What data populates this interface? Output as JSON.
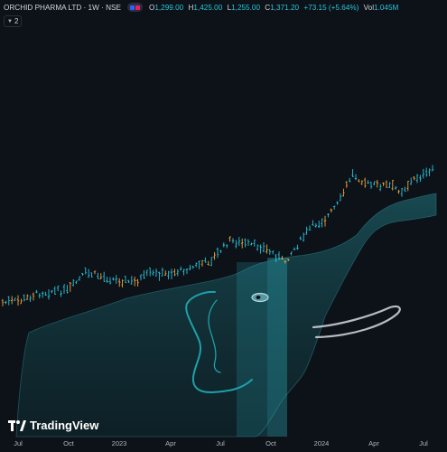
{
  "header": {
    "symbol": "ORCHID PHARMA LTD · 1W · NSE",
    "open_label": "O",
    "open": "1,299.00",
    "high_label": "H",
    "high": "1,425.00",
    "low_label": "L",
    "low": "1,255.00",
    "close_label": "C",
    "close": "1,371.20",
    "change": "+73.15 (+5.64%)",
    "vol_label": "Vol",
    "volume": "1.045M"
  },
  "indicators_toggle": {
    "count": "2"
  },
  "brand": {
    "name": "TradingView"
  },
  "colors": {
    "background": "#0d1118",
    "bar_up": "#26c6da",
    "bar_down": "#f6a33b",
    "band": "#1c5b63",
    "drawing": "#1fa0a8",
    "drawing_gray": "#b7bcc4"
  },
  "icons": [
    "chevron-down-icon",
    "tradingview-logo-icon"
  ],
  "chart_data": {
    "type": "ohlc",
    "x_ticks": [
      "Jul",
      "Oct",
      "2023",
      "Apr",
      "Jul",
      "Oct",
      "2024",
      "Apr",
      "Jul"
    ],
    "ylim": [
      0,
      1
    ]
  }
}
